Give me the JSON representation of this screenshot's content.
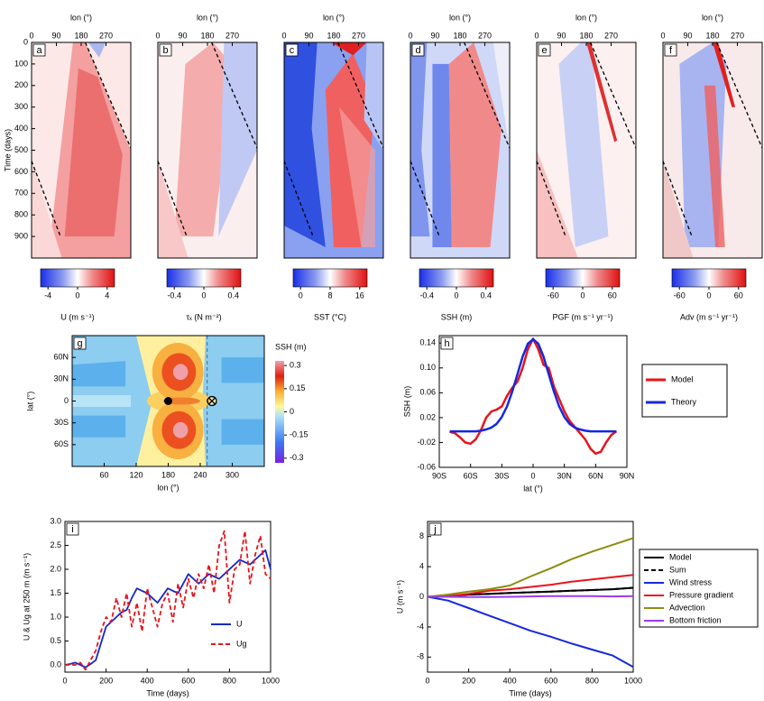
{
  "chart_data": [
    {
      "type": "heatmap",
      "label": "a",
      "xlabel": "lon (°)",
      "xlim": [
        0,
        360
      ],
      "xticks": [
        0,
        90,
        180,
        270
      ],
      "ylabel": "Time (days)",
      "ylim": [
        0,
        1000
      ],
      "yticks": [
        0,
        100,
        200,
        300,
        400,
        500,
        600,
        700,
        800,
        900
      ],
      "y_inverted": true,
      "colorbar_label": "U (m s⁻¹)",
      "clim": [
        -5,
        5
      ],
      "cticks": [
        -4,
        0,
        4
      ],
      "colormap": "bwr"
    },
    {
      "type": "heatmap",
      "label": "b",
      "xlabel": "lon (°)",
      "xlim": [
        0,
        360
      ],
      "xticks": [
        0,
        90,
        180,
        270
      ],
      "ylim": [
        0,
        1000
      ],
      "y_inverted": true,
      "colorbar_label": "τₓ (N m⁻²)",
      "clim": [
        -0.5,
        0.5
      ],
      "cticks": [
        -0.4,
        0,
        0.4
      ],
      "colormap": "bwr"
    },
    {
      "type": "heatmap",
      "label": "c",
      "xlabel": "lon (°)",
      "xlim": [
        0,
        360
      ],
      "xticks": [
        0,
        90,
        180,
        270
      ],
      "ylim": [
        0,
        1000
      ],
      "y_inverted": true,
      "colorbar_label": "SST (°C)",
      "clim": [
        -2,
        18
      ],
      "cticks": [
        0,
        8,
        16
      ],
      "colormap": "bwr"
    },
    {
      "type": "heatmap",
      "label": "d",
      "xlabel": "lon (°)",
      "xlim": [
        0,
        360
      ],
      "xticks": [
        0,
        90,
        180,
        270
      ],
      "ylim": [
        0,
        1000
      ],
      "y_inverted": true,
      "colorbar_label": "SSH (m)",
      "clim": [
        -0.5,
        0.5
      ],
      "cticks": [
        -0.4,
        0,
        0.4
      ],
      "colormap": "bwr"
    },
    {
      "type": "heatmap",
      "label": "e",
      "xlabel": "lon (°)",
      "xlim": [
        0,
        360
      ],
      "xticks": [
        0,
        90,
        180,
        270
      ],
      "ylim": [
        0,
        1000
      ],
      "y_inverted": true,
      "colorbar_label": "PGF (m s⁻¹ yr⁻¹)",
      "clim": [
        -75,
        75
      ],
      "cticks": [
        -60,
        0,
        60
      ],
      "colormap": "bwr"
    },
    {
      "type": "heatmap",
      "label": "f",
      "xlabel": "lon (°)",
      "xlim": [
        0,
        360
      ],
      "xticks": [
        0,
        90,
        180,
        270
      ],
      "ylim": [
        0,
        1000
      ],
      "y_inverted": true,
      "colorbar_label": "Adv (m s⁻¹ yr⁻¹)",
      "clim": [
        -75,
        75
      ],
      "cticks": [
        -60,
        0,
        60
      ],
      "colormap": "bwr"
    },
    {
      "type": "contour",
      "label": "g",
      "xlabel": "lon (°)",
      "xlim": [
        0,
        360
      ],
      "xticks": [
        60,
        120,
        180,
        240,
        300
      ],
      "ylabel": "lat (°)",
      "ylim": [
        -90,
        90
      ],
      "yticks": [
        {
          "value": 60,
          "label": "60N"
        },
        {
          "value": 30,
          "label": "30N"
        },
        0,
        {
          "value": -30,
          "label": "30S"
        },
        {
          "value": -60,
          "label": "60S"
        }
      ],
      "colorbar_label": "SSH (m)",
      "clim": [
        -0.33,
        0.33
      ],
      "cticks": [
        0.3,
        0.15,
        0,
        -0.15,
        -0.3
      ]
    },
    {
      "type": "line",
      "label": "h",
      "xlabel": "lat (°)",
      "ylabel": "SSH (m)",
      "xlim": [
        -90,
        90
      ],
      "xticks": [
        {
          "value": -90,
          "label": "90S"
        },
        {
          "value": -60,
          "label": "60S"
        },
        {
          "value": -30,
          "label": "30S"
        },
        0,
        {
          "value": 30,
          "label": "30N"
        },
        {
          "value": 60,
          "label": "60N"
        },
        {
          "value": 90,
          "label": "90N"
        }
      ],
      "ylim": [
        -0.06,
        0.152
      ],
      "yticks": [
        0.14,
        {
          "value": 0.1,
          "label": "0.10"
        },
        0.06,
        0.02,
        -0.02,
        -0.06
      ],
      "x": [
        -80,
        -75,
        -70,
        -65,
        -60,
        -55,
        -50,
        -45,
        -40,
        -35,
        -30,
        -25,
        -20,
        -15,
        -10,
        -5,
        0,
        5,
        10,
        15,
        20,
        25,
        30,
        35,
        40,
        45,
        50,
        55,
        60,
        65,
        70,
        75,
        80
      ],
      "series": [
        {
          "name": "Model",
          "color": "#e8141c",
          "values": [
            -0.003,
            -0.005,
            -0.012,
            -0.02,
            -0.022,
            -0.015,
            0.0,
            0.02,
            0.03,
            0.033,
            0.038,
            0.055,
            0.068,
            0.078,
            0.1,
            0.13,
            0.147,
            0.13,
            0.105,
            0.1,
            0.07,
            0.05,
            0.03,
            0.015,
            0.005,
            -0.005,
            -0.015,
            -0.03,
            -0.038,
            -0.035,
            -0.02,
            -0.008,
            -0.002
          ]
        },
        {
          "name": "Theory",
          "color": "#1428e0",
          "values": [
            -0.002,
            -0.002,
            -0.002,
            -0.002,
            -0.002,
            -0.002,
            -0.001,
            0.001,
            0.004,
            0.01,
            0.021,
            0.038,
            0.062,
            0.09,
            0.118,
            0.139,
            0.146,
            0.139,
            0.118,
            0.09,
            0.062,
            0.038,
            0.021,
            0.01,
            0.004,
            0.001,
            -0.001,
            -0.002,
            -0.002,
            -0.002,
            -0.002,
            -0.002,
            -0.002
          ]
        }
      ],
      "legend": "outside-right"
    },
    {
      "type": "line",
      "label": "i",
      "xlabel": "Time (days)",
      "ylabel": "U & Ug at 250 m (m s⁻¹)",
      "xlim": [
        0,
        1000
      ],
      "xticks": [
        0,
        200,
        400,
        600,
        800,
        1000
      ],
      "ylim": [
        -0.15,
        3.0
      ],
      "yticks": [
        {
          "value": 0,
          "label": "0.0"
        },
        0.5,
        {
          "value": 1,
          "label": "1.0"
        },
        1.5,
        {
          "value": 2,
          "label": "2.0"
        },
        2.5,
        {
          "value": 3,
          "label": "3.0"
        }
      ],
      "x": [
        0,
        25,
        50,
        75,
        100,
        125,
        150,
        175,
        200,
        225,
        250,
        275,
        300,
        325,
        350,
        375,
        400,
        425,
        450,
        475,
        500,
        525,
        550,
        575,
        600,
        625,
        650,
        675,
        700,
        725,
        750,
        775,
        800,
        825,
        850,
        875,
        900,
        925,
        950,
        975,
        1000
      ],
      "series": [
        {
          "name": "U",
          "color": "#1428c8",
          "values": [
            0,
            0.02,
            0.05,
            0,
            -0.05,
            0.02,
            0.1,
            0.45,
            0.8,
            0.9,
            1.0,
            1.1,
            1.15,
            1.4,
            1.6,
            1.55,
            1.5,
            1.4,
            1.3,
            1.45,
            1.6,
            1.55,
            1.5,
            1.7,
            1.9,
            1.8,
            1.7,
            1.8,
            1.9,
            1.85,
            1.8,
            1.9,
            2.0,
            2.1,
            2.2,
            2.15,
            2.1,
            2.2,
            2.3,
            2.4,
            2.0
          ]
        },
        {
          "name": "Ug",
          "color": "#e8141c",
          "dashed": true,
          "values": [
            0,
            0,
            0,
            0.05,
            -0.1,
            0.1,
            0.3,
            0.7,
            1.0,
            0.9,
            1.4,
            1.0,
            1.5,
            0.8,
            1.3,
            0.7,
            1.6,
            1.2,
            0.8,
            1.3,
            1.5,
            0.9,
            1.7,
            1.2,
            1.8,
            1.4,
            1.9,
            1.6,
            2.1,
            1.5,
            2.5,
            2.8,
            1.3,
            2.0,
            2.1,
            2.8,
            1.7,
            2.3,
            2.7,
            1.9,
            1.8
          ]
        }
      ],
      "legend": "lower-right"
    },
    {
      "type": "line",
      "label": "j",
      "xlabel": "Time (days)",
      "ylabel": "U (m s⁻¹)",
      "xlim": [
        0,
        1000
      ],
      "xticks": [
        0,
        200,
        400,
        600,
        800,
        1000
      ],
      "ylim": [
        -10,
        10
      ],
      "yticks": [
        8,
        4,
        0,
        -4,
        -8
      ],
      "x": [
        0,
        100,
        200,
        300,
        400,
        500,
        600,
        700,
        800,
        900,
        1000
      ],
      "series": [
        {
          "name": "Model",
          "color": "#000000",
          "values": [
            0,
            0.1,
            0.3,
            0.4,
            0.5,
            0.6,
            0.7,
            0.8,
            0.9,
            1.0,
            1.2
          ]
        },
        {
          "name": "Sum",
          "color": "#000000",
          "dashed": true,
          "values": [
            0,
            0.1,
            0.3,
            0.4,
            0.5,
            0.6,
            0.7,
            0.8,
            0.9,
            1.0,
            1.2
          ]
        },
        {
          "name": "Wind stress",
          "color": "#1428e0",
          "values": [
            0,
            -0.5,
            -1.5,
            -2.5,
            -3.5,
            -4.5,
            -5.3,
            -6.2,
            -7.0,
            -7.8,
            -9.3
          ]
        },
        {
          "name": "Pressure gradient",
          "color": "#e8141c",
          "values": [
            0,
            0.1,
            0.4,
            0.8,
            1.0,
            1.3,
            1.6,
            2.0,
            2.3,
            2.6,
            2.9
          ]
        },
        {
          "name": "Advection",
          "color": "#8c8c10",
          "values": [
            0,
            0.3,
            0.7,
            1.0,
            1.5,
            2.7,
            3.8,
            5.0,
            6.0,
            6.9,
            7.8
          ]
        },
        {
          "name": "Bottom friction",
          "color": "#9a3cf0",
          "values": [
            0,
            0,
            -0.02,
            -0.03,
            0,
            0.05,
            0.1,
            0.1,
            0.1,
            0.05,
            0.1
          ]
        }
      ],
      "legend": "outside-right"
    }
  ]
}
